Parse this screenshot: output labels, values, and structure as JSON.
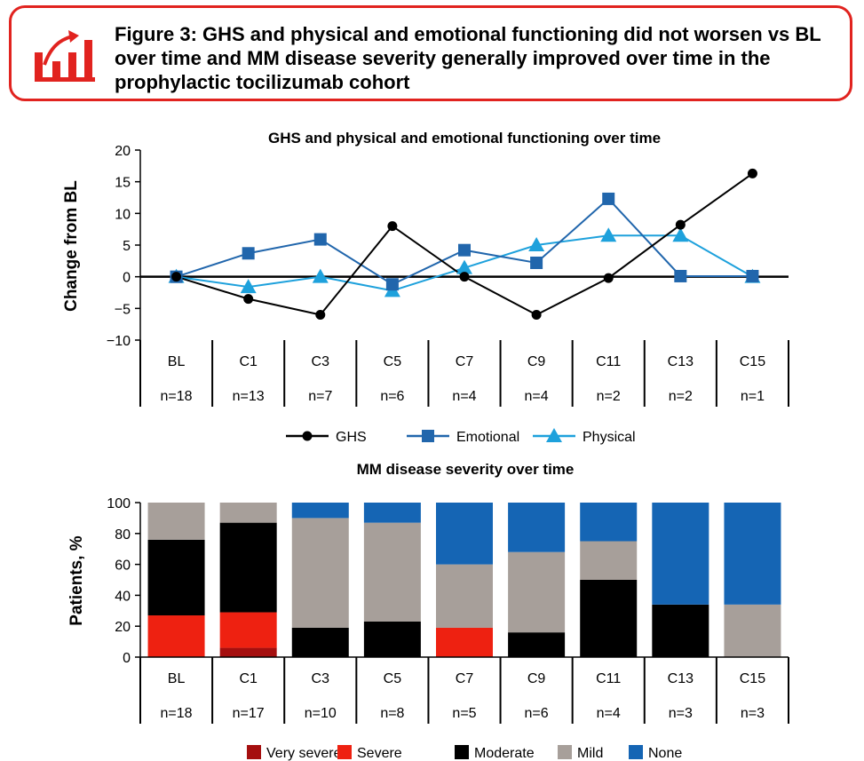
{
  "banner": {
    "title": "Figure 3: GHS and physical and emotional functioning did not worsen vs BL over time and MM disease severity generally improved over time in the prophylactic tocilizumab cohort",
    "icon": "rising-bar-chart-icon",
    "accent_color": "#e1231f"
  },
  "chart_data": [
    {
      "type": "line",
      "title": "GHS and physical and emotional functioning over time",
      "xlabel": "",
      "ylabel": "Change from BL",
      "ylim": [
        -10,
        20
      ],
      "yticks": [
        "20",
        "15",
        "10",
        "5",
        "0",
        "−5",
        "−10"
      ],
      "yticks_values": [
        20,
        15,
        10,
        5,
        0,
        -5,
        -10
      ],
      "categories": [
        "BL",
        "C1",
        "C3",
        "C5",
        "C7",
        "C9",
        "C11",
        "C13",
        "C15"
      ],
      "n_labels": [
        "n=18",
        "n=13",
        "n=7",
        "n=6",
        "n=4",
        "n=4",
        "n=2",
        "n=2",
        "n=1"
      ],
      "legend_position": "bottom",
      "series": [
        {
          "name": "GHS",
          "color": "#000000",
          "marker": "circle",
          "values": [
            0,
            -3.5,
            -6,
            8,
            0,
            -6,
            -0.2,
            8.2,
            16.3
          ]
        },
        {
          "name": "Emotional",
          "color": "#2166ac",
          "marker": "square",
          "values": [
            0,
            3.7,
            5.9,
            -1.2,
            4.2,
            2.2,
            12.3,
            0.1,
            0.1
          ]
        },
        {
          "name": "Physical",
          "color": "#1ea1dc",
          "marker": "triangle",
          "values": [
            0,
            -1.6,
            0,
            -2.2,
            1.4,
            5,
            6.5,
            6.5,
            0
          ]
        }
      ]
    },
    {
      "type": "bar",
      "stacked": true,
      "title": "MM disease severity over time",
      "xlabel": "",
      "ylabel": "Patients, %",
      "ylim": [
        0,
        100
      ],
      "yticks": [
        "100",
        "80",
        "60",
        "40",
        "20",
        "0"
      ],
      "yticks_values": [
        100,
        80,
        60,
        40,
        20,
        0
      ],
      "categories": [
        "BL",
        "C1",
        "C3",
        "C5",
        "C7",
        "C9",
        "C11",
        "C13",
        "C15"
      ],
      "n_labels": [
        "n=18",
        "n=17",
        "n=10",
        "n=8",
        "n=5",
        "n=6",
        "n=4",
        "n=3",
        "n=3"
      ],
      "legend_position": "bottom",
      "series": [
        {
          "name": "Very severe",
          "color": "#a50f0f",
          "values": [
            0,
            6,
            0,
            0,
            0,
            0,
            0,
            0,
            0
          ]
        },
        {
          "name": "Severe",
          "color": "#ee2111",
          "values": [
            27,
            23,
            0,
            0,
            19,
            0,
            0,
            0,
            0
          ]
        },
        {
          "name": "Moderate",
          "color": "#000000",
          "values": [
            49,
            58,
            19,
            23,
            0,
            16,
            50,
            34,
            0
          ]
        },
        {
          "name": "Mild",
          "color": "#a79f9a",
          "values": [
            24,
            13,
            71,
            64,
            41,
            52,
            25,
            0,
            34
          ]
        },
        {
          "name": "None",
          "color": "#1565b4",
          "values": [
            0,
            0,
            10,
            13,
            40,
            32,
            25,
            66,
            66
          ]
        }
      ]
    }
  ]
}
